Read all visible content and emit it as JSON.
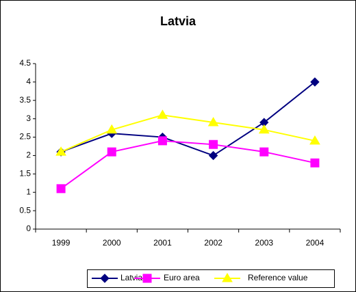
{
  "chart_data": {
    "type": "line",
    "title": "Latvia",
    "categories": [
      "1999",
      "2000",
      "2001",
      "2002",
      "2003",
      "2004"
    ],
    "series": [
      {
        "name": "Latvia",
        "color": "#000080",
        "marker": "diamond",
        "values": [
          2.1,
          2.6,
          2.5,
          2.0,
          2.9,
          4.0
        ]
      },
      {
        "name": "Euro area",
        "color": "#ff00ff",
        "marker": "square",
        "values": [
          1.1,
          2.1,
          2.4,
          2.3,
          2.1,
          1.8
        ]
      },
      {
        "name": "Reference value",
        "color": "#ffff00",
        "marker": "triangle",
        "values": [
          2.1,
          2.7,
          3.1,
          2.9,
          2.7,
          2.4
        ]
      }
    ],
    "ylim": [
      0,
      4.5
    ],
    "yticks": [
      0,
      0.5,
      1,
      1.5,
      2,
      2.5,
      3,
      3.5,
      4,
      4.5
    ],
    "grid": false,
    "legend": "bottom"
  }
}
